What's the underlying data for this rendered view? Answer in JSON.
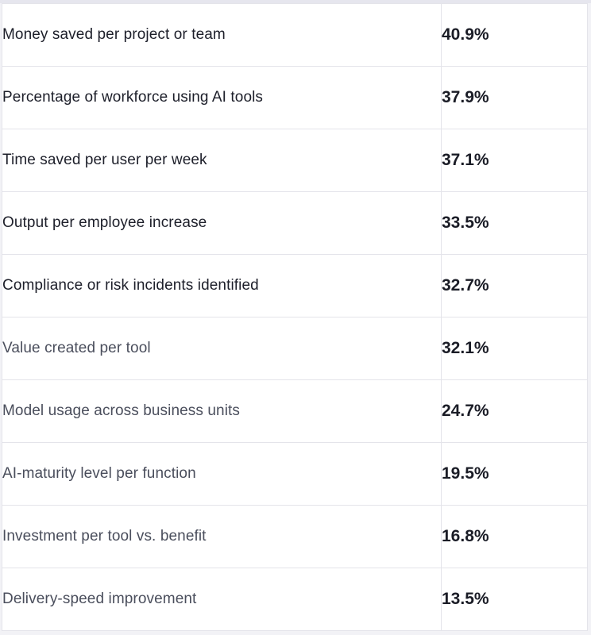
{
  "rows": [
    {
      "metric": "Money saved per project or team",
      "value": "40.9%"
    },
    {
      "metric": "Percentage of workforce using AI tools",
      "value": "37.9%"
    },
    {
      "metric": "Time saved per user per week",
      "value": "37.1%"
    },
    {
      "metric": "Output per employee increase",
      "value": "33.5%"
    },
    {
      "metric": "Compliance or risk incidents identified",
      "value": "32.7%"
    },
    {
      "metric": "Value created per tool",
      "value": "32.1%"
    },
    {
      "metric": "Model usage across business units",
      "value": "24.7%"
    },
    {
      "metric": "AI-maturity level per function",
      "value": "19.5%"
    },
    {
      "metric": "Investment per tool vs. benefit",
      "value": "16.8%"
    },
    {
      "metric": "Delivery-speed improvement",
      "value": "13.5%"
    }
  ]
}
